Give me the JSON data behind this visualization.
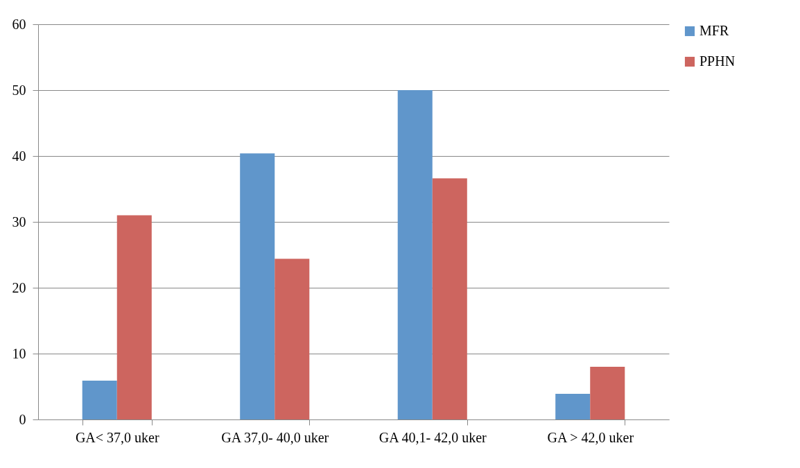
{
  "chart_data": {
    "type": "bar",
    "categories": [
      "GA< 37,0 uker",
      "GA 37,0- 40,0 uker",
      "GA 40,1- 42,0 uker",
      "GA > 42,0 uker"
    ],
    "series": [
      {
        "name": "MFR",
        "color": "#6096cb",
        "values": [
          5.9,
          40.4,
          50,
          3.9
        ]
      },
      {
        "name": "PPHN",
        "color": "#cd655f",
        "values": [
          31,
          24.4,
          36.6,
          8
        ]
      }
    ],
    "ylim": [
      0,
      60
    ],
    "yticks": [
      0,
      10,
      20,
      30,
      40,
      50,
      60
    ],
    "grid": "y",
    "legend": "right"
  }
}
